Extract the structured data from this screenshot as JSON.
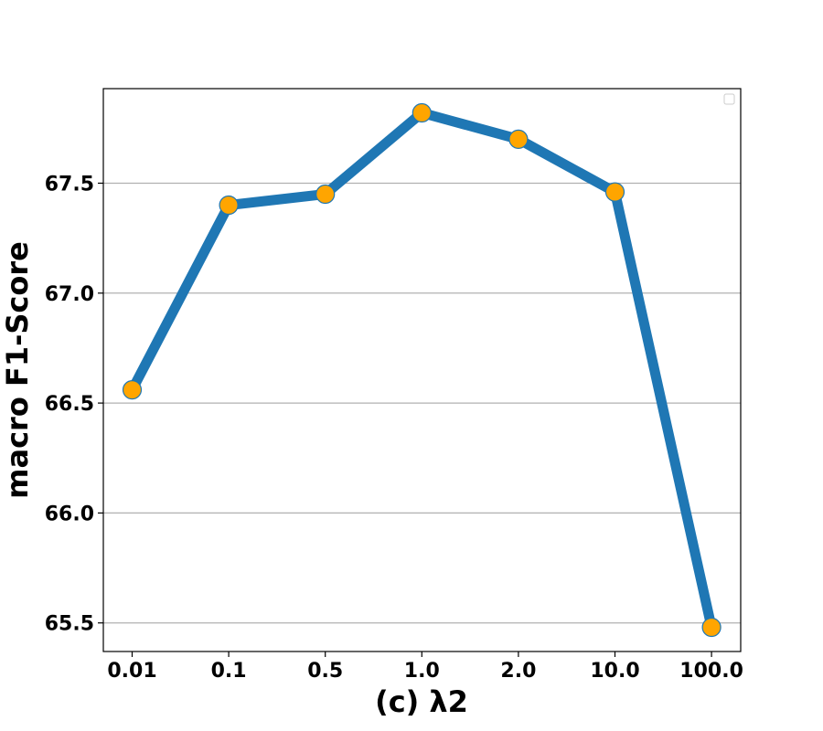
{
  "chart_data": {
    "type": "line",
    "title": "",
    "xlabel": "(c) λ2",
    "ylabel": "macro F1-Score",
    "categories": [
      "0.01",
      "0.1",
      "0.5",
      "1.0",
      "2.0",
      "10.0",
      "100.0"
    ],
    "series": [
      {
        "values": [
          66.56,
          67.4,
          67.45,
          67.82,
          67.7,
          67.46,
          65.48
        ]
      }
    ],
    "yticks": [
      "65.5",
      "66.0",
      "66.5",
      "67.0",
      "67.5"
    ],
    "ylim": [
      65.37,
      67.93
    ],
    "grid": "horizontal",
    "legend": "top-right (empty)",
    "colors": {
      "line": "#1f77b4",
      "marker": "#ffa500",
      "marker_edge": "#1f77b4",
      "grid": "#b0b0b0"
    }
  }
}
